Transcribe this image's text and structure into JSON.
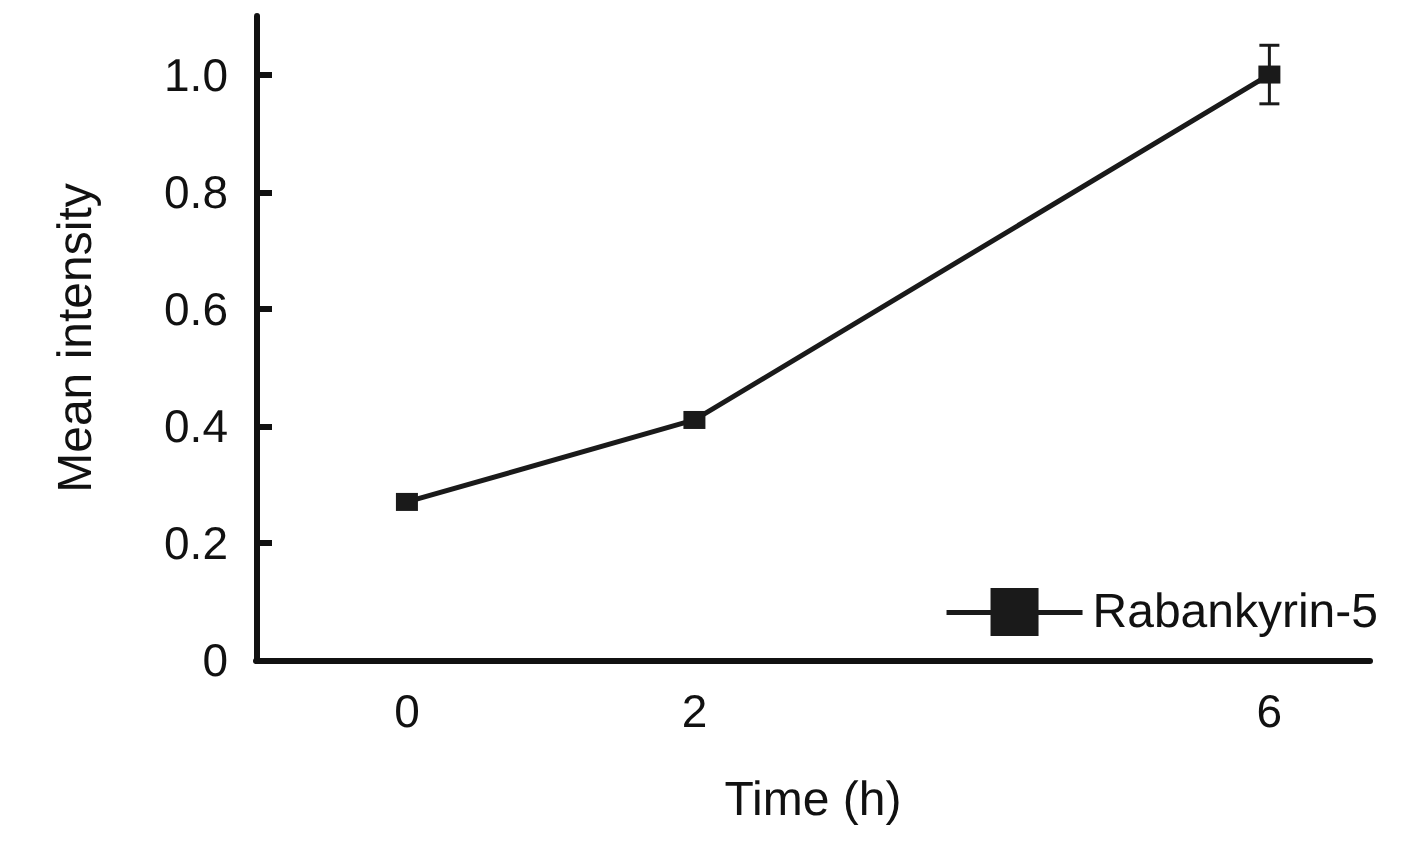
{
  "chart_data": {
    "type": "line",
    "xlabel": "Time (h)",
    "ylabel": "Mean intensity",
    "x": [
      0,
      2,
      6
    ],
    "series": [
      {
        "name": "Rabankyrin-5",
        "color": "#1a1a1a",
        "values": [
          0.27,
          0.41,
          1.0
        ],
        "errors": [
          null,
          null,
          0.05
        ]
      }
    ],
    "xlim": [
      -1.05,
      6.7
    ],
    "xticks": [
      0,
      2,
      6
    ],
    "ylim": [
      0,
      1.1
    ],
    "yticks": [
      0,
      0.2,
      0.4,
      0.6,
      0.8,
      {
        "value": 1,
        "label": "1.0"
      }
    ],
    "grid": false,
    "legend": "bottom right",
    "marker": "square",
    "line_style": "solid"
  }
}
